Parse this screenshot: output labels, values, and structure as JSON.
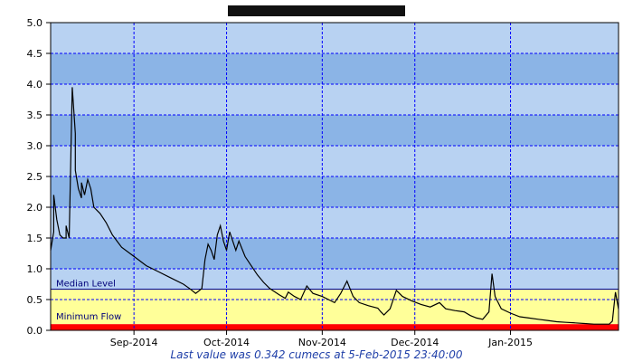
{
  "chart_data": {
    "type": "line",
    "title": "",
    "xlabel": "",
    "ylabel": "",
    "ylim": [
      0,
      5
    ],
    "yticks": [
      "0.0",
      "0.5",
      "1.0",
      "1.5",
      "2.0",
      "2.5",
      "3.0",
      "3.5",
      "4.0",
      "4.5",
      "5.0"
    ],
    "xlim": [
      "2014-08-05",
      "2015-02-05"
    ],
    "xticks": [
      {
        "label": "Sep-2014",
        "date": "2014-09-01"
      },
      {
        "label": "Oct-2014",
        "date": "2014-10-01"
      },
      {
        "label": "Nov-2014",
        "date": "2014-11-01"
      },
      {
        "label": "Dec-2014",
        "date": "2014-12-01"
      },
      {
        "label": "Jan-2015",
        "date": "2015-01-01"
      }
    ],
    "grid": true,
    "bands": [
      {
        "label": "Median Level",
        "value": 0.67,
        "color": "#ffff99"
      },
      {
        "label": "Minimum Flow",
        "value": 0.1,
        "color": "#ff0000"
      }
    ],
    "colors": {
      "band_dark": "#8bb4e6",
      "band_light": "#b8d2f2",
      "below_median": "#ffff99",
      "below_minimum": "#ff0000",
      "line": "#000000",
      "grid": "#0000ff",
      "footer_text": "#1f3fa8"
    },
    "series": [
      {
        "values": [
          [
            "2014-08-05",
            1.3
          ],
          [
            "2014-08-06",
            1.6
          ],
          [
            "2014-08-06",
            2.2
          ],
          [
            "2014-08-07",
            1.8
          ],
          [
            "2014-08-08",
            1.55
          ],
          [
            "2014-08-09",
            1.5
          ],
          [
            "2014-08-10",
            1.5
          ],
          [
            "2014-08-10",
            1.7
          ],
          [
            "2014-08-11",
            1.5
          ],
          [
            "2014-08-12",
            3.95
          ],
          [
            "2014-08-13",
            3.2
          ],
          [
            "2014-08-13",
            2.6
          ],
          [
            "2014-08-14",
            2.3
          ],
          [
            "2014-08-15",
            2.15
          ],
          [
            "2014-08-15",
            2.4
          ],
          [
            "2014-08-16",
            2.2
          ],
          [
            "2014-08-17",
            2.45
          ],
          [
            "2014-08-18",
            2.3
          ],
          [
            "2014-08-19",
            2.0
          ],
          [
            "2014-08-21",
            1.9
          ],
          [
            "2014-08-23",
            1.75
          ],
          [
            "2014-08-25",
            1.55
          ],
          [
            "2014-08-28",
            1.35
          ],
          [
            "2014-09-01",
            1.2
          ],
          [
            "2014-09-05",
            1.05
          ],
          [
            "2014-09-09",
            0.95
          ],
          [
            "2014-09-13",
            0.85
          ],
          [
            "2014-09-17",
            0.75
          ],
          [
            "2014-09-19",
            0.68
          ],
          [
            "2014-09-21",
            0.6
          ],
          [
            "2014-09-23",
            0.68
          ],
          [
            "2014-09-24",
            1.15
          ],
          [
            "2014-09-25",
            1.4
          ],
          [
            "2014-09-26",
            1.3
          ],
          [
            "2014-09-27",
            1.15
          ],
          [
            "2014-09-28",
            1.55
          ],
          [
            "2014-09-29",
            1.7
          ],
          [
            "2014-09-30",
            1.45
          ],
          [
            "2014-10-01",
            1.3
          ],
          [
            "2014-10-02",
            1.6
          ],
          [
            "2014-10-03",
            1.45
          ],
          [
            "2014-10-04",
            1.3
          ],
          [
            "2014-10-05",
            1.45
          ],
          [
            "2014-10-07",
            1.2
          ],
          [
            "2014-10-09",
            1.05
          ],
          [
            "2014-10-11",
            0.9
          ],
          [
            "2014-10-13",
            0.78
          ],
          [
            "2014-10-15",
            0.68
          ],
          [
            "2014-10-18",
            0.58
          ],
          [
            "2014-10-20",
            0.52
          ],
          [
            "2014-10-21",
            0.62
          ],
          [
            "2014-10-23",
            0.55
          ],
          [
            "2014-10-25",
            0.5
          ],
          [
            "2014-10-27",
            0.72
          ],
          [
            "2014-10-29",
            0.6
          ],
          [
            "2014-11-01",
            0.55
          ],
          [
            "2014-11-03",
            0.5
          ],
          [
            "2014-11-05",
            0.45
          ],
          [
            "2014-11-07",
            0.6
          ],
          [
            "2014-11-09",
            0.8
          ],
          [
            "2014-11-11",
            0.55
          ],
          [
            "2014-11-13",
            0.45
          ],
          [
            "2014-11-16",
            0.4
          ],
          [
            "2014-11-19",
            0.36
          ],
          [
            "2014-11-20",
            0.3
          ],
          [
            "2014-11-21",
            0.25
          ],
          [
            "2014-11-23",
            0.35
          ],
          [
            "2014-11-25",
            0.65
          ],
          [
            "2014-11-27",
            0.55
          ],
          [
            "2014-11-30",
            0.48
          ],
          [
            "2014-12-03",
            0.42
          ],
          [
            "2014-12-06",
            0.38
          ],
          [
            "2014-12-09",
            0.45
          ],
          [
            "2014-12-11",
            0.35
          ],
          [
            "2014-12-14",
            0.32
          ],
          [
            "2014-12-17",
            0.3
          ],
          [
            "2014-12-19",
            0.24
          ],
          [
            "2014-12-21",
            0.2
          ],
          [
            "2014-12-23",
            0.18
          ],
          [
            "2014-12-25",
            0.3
          ],
          [
            "2014-12-26",
            0.92
          ],
          [
            "2014-12-27",
            0.55
          ],
          [
            "2014-12-29",
            0.35
          ],
          [
            "2015-01-01",
            0.28
          ],
          [
            "2015-01-04",
            0.22
          ],
          [
            "2015-01-07",
            0.2
          ],
          [
            "2015-01-10",
            0.18
          ],
          [
            "2015-01-13",
            0.16
          ],
          [
            "2015-01-16",
            0.14
          ],
          [
            "2015-01-19",
            0.13
          ],
          [
            "2015-01-22",
            0.12
          ],
          [
            "2015-01-25",
            0.11
          ],
          [
            "2015-01-28",
            0.1
          ],
          [
            "2015-01-31",
            0.1
          ],
          [
            "2015-02-02",
            0.1
          ],
          [
            "2015-02-03",
            0.15
          ],
          [
            "2015-02-04",
            0.62
          ],
          [
            "2015-02-05",
            0.342
          ]
        ]
      }
    ]
  },
  "footer": {
    "text": "Last value was 0.342 cumecs at  5-Feb-2015 23:40:00"
  }
}
